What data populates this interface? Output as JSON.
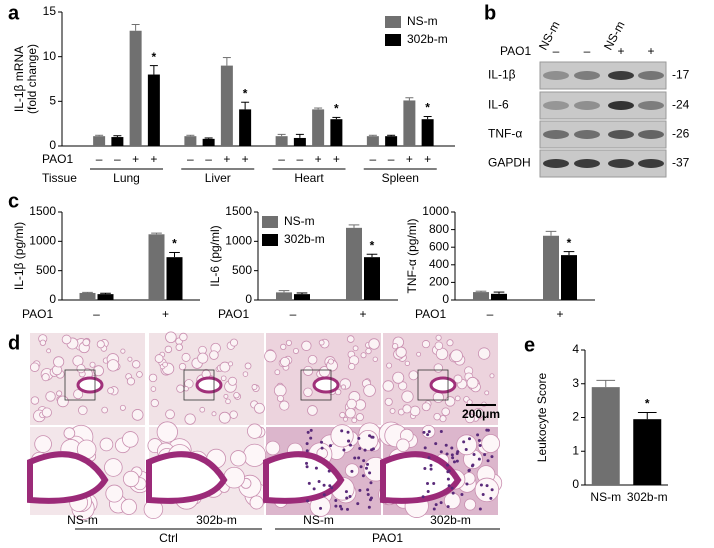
{
  "panel_labels": [
    "a",
    "b",
    "c",
    "d",
    "e"
  ],
  "chart_data": [
    {
      "type": "bar",
      "ylabel": [
        "IL-1β mRNA",
        "(fold change)"
      ],
      "xlabel": "PAO1",
      "group_label": "Tissue",
      "groups": [
        "Lung",
        "Liver",
        "Heart",
        "Spleen"
      ],
      "categories": [
        "–",
        "–",
        "+",
        "+",
        "–",
        "–",
        "+",
        "+",
        "–",
        "–",
        "+",
        "+",
        "–",
        "–",
        "+",
        "+"
      ],
      "series": [
        {
          "name": "NS-m",
          "color": "#707070",
          "values": [
            1.1,
            null,
            12.9,
            null,
            1.1,
            null,
            9.0,
            null,
            1.1,
            null,
            4.1,
            null,
            1.1,
            null,
            5.1,
            null
          ],
          "errors": [
            0.1,
            null,
            0.7,
            null,
            0.1,
            null,
            0.9,
            null,
            0.2,
            null,
            0.15,
            null,
            0.1,
            null,
            0.3,
            null
          ]
        },
        {
          "name": "302b-m",
          "color": "#000000",
          "values": [
            null,
            1.0,
            null,
            8.0,
            null,
            0.8,
            null,
            4.1,
            null,
            0.9,
            null,
            3.0,
            null,
            1.1,
            null,
            3.0
          ],
          "errors": [
            null,
            0.15,
            null,
            1.0,
            null,
            0.1,
            null,
            0.8,
            null,
            0.4,
            null,
            0.2,
            null,
            0.1,
            null,
            0.3
          ],
          "significance": [
            null,
            null,
            null,
            "*",
            null,
            null,
            null,
            "*",
            null,
            null,
            null,
            "*",
            null,
            null,
            null,
            "*"
          ]
        }
      ],
      "ylim": [
        0,
        15
      ],
      "yticks": [
        0,
        5,
        10,
        15
      ],
      "legend": "upper right"
    },
    {
      "type": "bar",
      "ylabel": "IL-1β  (pg/ml)",
      "xlabel": "PAO1",
      "categories": [
        "–",
        "+"
      ],
      "series": [
        {
          "name": "NS-m",
          "color": "#707070",
          "values": [
            120,
            1120
          ],
          "errors": [
            10,
            20
          ]
        },
        {
          "name": "302b-m",
          "color": "#000000",
          "values": [
            100,
            730
          ],
          "errors": [
            15,
            80
          ],
          "significance": [
            null,
            "*"
          ]
        }
      ],
      "ylim": [
        0,
        1500
      ],
      "yticks": [
        0,
        500,
        1000,
        1500
      ]
    },
    {
      "type": "bar",
      "ylabel": "IL-6  (pg/ml)",
      "xlabel": "PAO1",
      "categories": [
        "–",
        "+"
      ],
      "series": [
        {
          "name": "NS-m",
          "color": "#707070",
          "values": [
            130,
            1230
          ],
          "errors": [
            30,
            50
          ]
        },
        {
          "name": "302b-m",
          "color": "#000000",
          "values": [
            100,
            730
          ],
          "errors": [
            20,
            50
          ],
          "significance": [
            null,
            "*"
          ]
        }
      ],
      "ylim": [
        0,
        1500
      ],
      "yticks": [
        0,
        500,
        1000,
        1500
      ],
      "legend": "upper left"
    },
    {
      "type": "bar",
      "ylabel": "TNF-α  (pg/ml)",
      "xlabel": "PAO1",
      "categories": [
        "–",
        "+"
      ],
      "series": [
        {
          "name": "NS-m",
          "color": "#707070",
          "values": [
            90,
            730
          ],
          "errors": [
            10,
            50
          ]
        },
        {
          "name": "302b-m",
          "color": "#000000",
          "values": [
            70,
            510
          ],
          "errors": [
            20,
            40
          ],
          "significance": [
            null,
            "*"
          ]
        }
      ],
      "ylim": [
        0,
        1000
      ],
      "yticks": [
        0,
        200,
        400,
        600,
        800,
        1000
      ]
    },
    {
      "type": "bar",
      "ylabel": "Leukocyte Score",
      "categories": [
        "NS-m",
        "302b-m"
      ],
      "values": [
        2.9,
        1.95
      ],
      "errors": [
        0.2,
        0.2
      ],
      "colors": [
        "#707070",
        "#000000"
      ],
      "significance": [
        null,
        "*"
      ],
      "ylim": [
        0,
        4
      ],
      "yticks": [
        0,
        1,
        2,
        3,
        4
      ]
    }
  ],
  "blot": {
    "lane_labels": [
      "NS-m",
      "NS-m"
    ],
    "pao1_label": "PAO1",
    "pao1_signs": [
      "–",
      "–",
      "+",
      "+"
    ],
    "rows": [
      {
        "name": "IL-1β",
        "size": "-17"
      },
      {
        "name": "IL-6",
        "size": "-24"
      },
      {
        "name": "TNF-α",
        "size": "-26"
      },
      {
        "name": "GAPDH",
        "size": "-37"
      }
    ]
  },
  "histology": {
    "columns": [
      "NS-m",
      "302b-m",
      "NS-m",
      "302b-m"
    ],
    "groups": [
      "Ctrl",
      "PAO1"
    ],
    "scale_bar": "200μm"
  }
}
